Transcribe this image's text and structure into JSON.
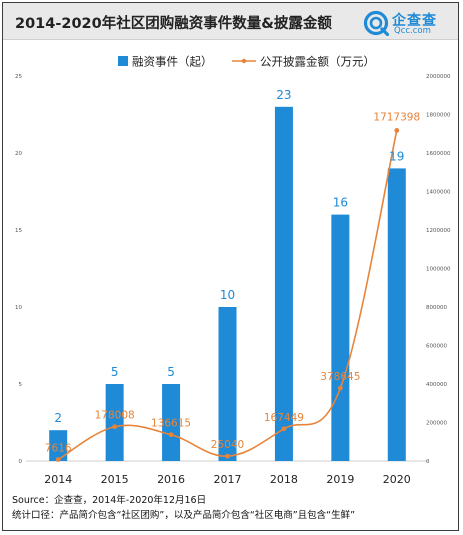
{
  "header": {
    "title": "2014-2020年社区团购融资事件数量&披露金额",
    "logo_name": "企查查",
    "logo_domain": "Qcc.com"
  },
  "footer": {
    "source": "Source：企查查，2014年-2020年12月16日",
    "note": "统计口径：产品简介包含“社区团购”，以及产品简介包含“社区电商”且包含“生鲜”"
  },
  "colors": {
    "bar": "#1f8ad6",
    "line": "#e8843a",
    "header_bg": "#e9e9e9",
    "logo": "#1f8ad6"
  },
  "chart_data": {
    "type": "bar",
    "title": "2014-2020年社区团购融资事件数量&披露金额",
    "categories": [
      "2014",
      "2015",
      "2016",
      "2017",
      "2018",
      "2019",
      "2020"
    ],
    "series": [
      {
        "name": "融资事件（起）",
        "type": "bar",
        "axis": "left",
        "values": [
          2,
          5,
          5,
          10,
          23,
          16,
          19
        ],
        "labels": [
          "2",
          "5",
          "5",
          "10",
          "23",
          "16",
          "19"
        ]
      },
      {
        "name": "公开披露金额（万元）",
        "type": "line",
        "axis": "right",
        "values": [
          7616,
          178008,
          136615,
          25040,
          167449,
          378645,
          1717398
        ],
        "labels": [
          "7616",
          "178008",
          "136615",
          "25040",
          "167449",
          "378645",
          "1717398"
        ]
      }
    ],
    "y_left": {
      "ylim": [
        0,
        25
      ],
      "ticks": [
        "0",
        "5",
        "10",
        "15",
        "20",
        "25"
      ]
    },
    "y_right": {
      "ylim": [
        0,
        2000000
      ],
      "ticks": [
        "0",
        "200000",
        "400000",
        "600000",
        "800000",
        "1000000",
        "1200000",
        "1400000",
        "1600000",
        "1800000",
        "2000000"
      ]
    },
    "legend_position": "top",
    "grid": false
  }
}
